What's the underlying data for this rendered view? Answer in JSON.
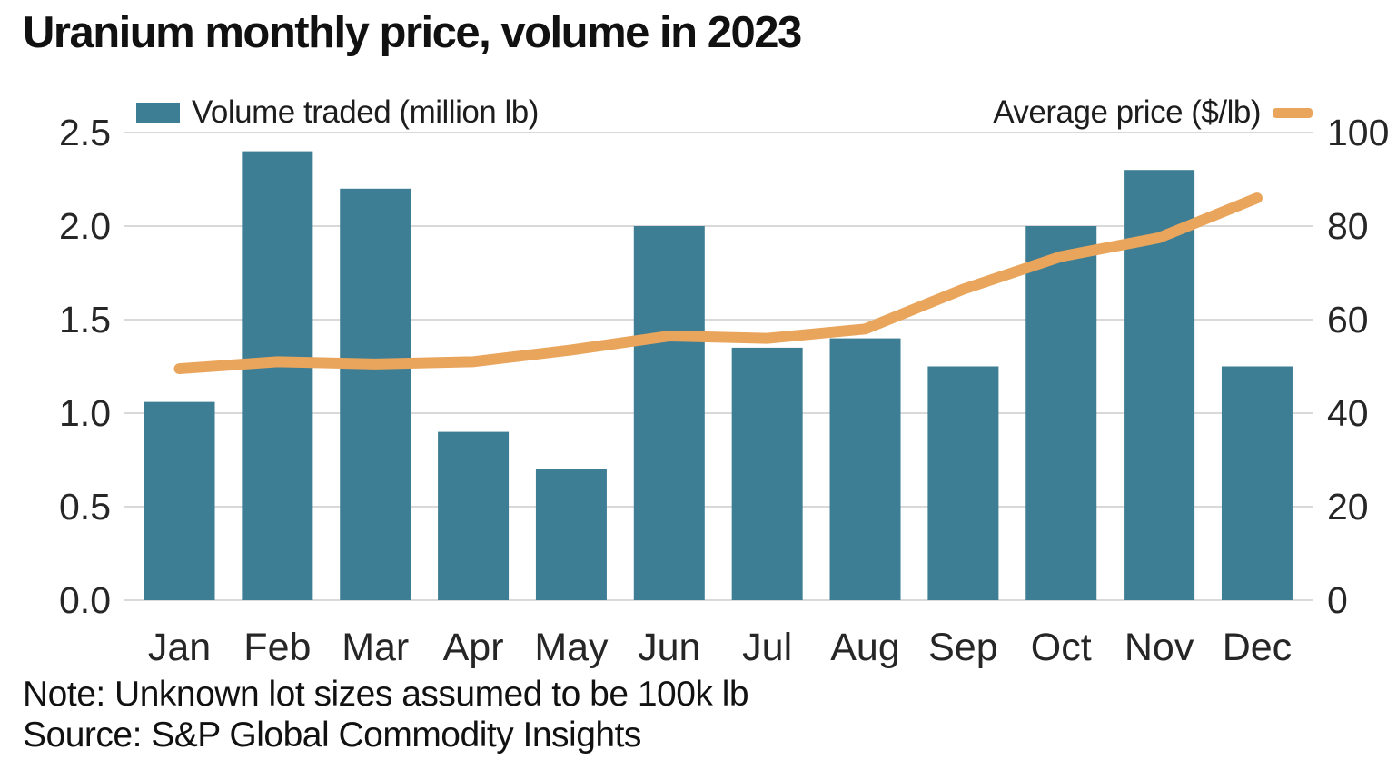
{
  "title": "Uranium monthly price, volume in 2023",
  "legend": {
    "volume_label": "Volume traded (million lb)",
    "price_label": "Average price ($/lb)"
  },
  "note": "Note: Unknown lot sizes assumed to be 100k lb",
  "source": "Source: S&P Global Commodity Insights",
  "colors": {
    "bar": "#3e7e95",
    "line": "#e9a55c",
    "grid": "#d9d9d9",
    "text": "#262626"
  },
  "chart_data": {
    "type": "bar",
    "subtype": "dual-axis bar + line",
    "title": "Uranium monthly price, volume in 2023",
    "categories": [
      "Jan",
      "Feb",
      "Mar",
      "Apr",
      "May",
      "Jun",
      "Jul",
      "Aug",
      "Sep",
      "Oct",
      "Nov",
      "Dec"
    ],
    "series": [
      {
        "name": "Volume traded (million lb)",
        "type": "bar",
        "axis": "left",
        "values": [
          1.06,
          2.4,
          2.2,
          0.9,
          0.7,
          2.0,
          1.35,
          1.4,
          1.25,
          2.0,
          2.3,
          1.25
        ]
      },
      {
        "name": "Average price ($/lb)",
        "type": "line",
        "axis": "right",
        "values": [
          49.5,
          51,
          50.5,
          51,
          53.5,
          56.5,
          56,
          58,
          66.5,
          73.5,
          77.5,
          86
        ]
      }
    ],
    "left_axis": {
      "label": "Volume traded (million lb)",
      "range": [
        0,
        2.5
      ],
      "ticks": [
        0,
        0.5,
        1,
        1.5,
        2,
        2.5
      ],
      "tick_labels": [
        "0.0",
        "0.5",
        "1.0",
        "1.5",
        "2.0",
        "2.5"
      ]
    },
    "right_axis": {
      "label": "Average price ($/lb)",
      "range": [
        0,
        100
      ],
      "ticks": [
        0,
        20,
        40,
        60,
        80,
        100
      ],
      "tick_labels": [
        "0",
        "20",
        "40",
        "60",
        "80",
        "100"
      ]
    },
    "grid": true,
    "legend_position": "top"
  }
}
